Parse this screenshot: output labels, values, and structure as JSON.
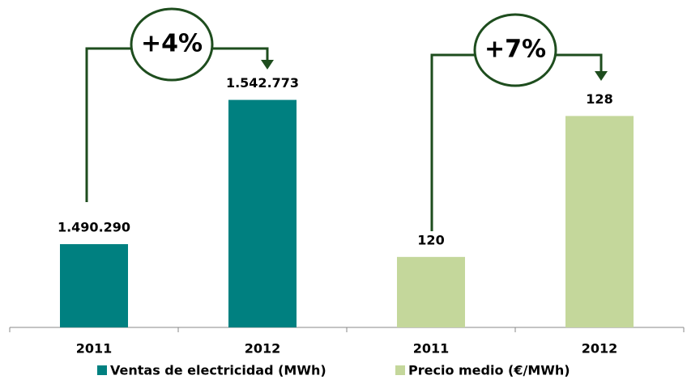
{
  "chart_data": [
    {
      "type": "bar",
      "categories": [
        "2011",
        "2012"
      ],
      "series": [
        {
          "name": "Ventas de electricidad (MWh)",
          "color": "#008080",
          "values": [
            1490290,
            1542773
          ],
          "value_labels": [
            "1.490.290",
            "1.542.773"
          ]
        }
      ],
      "ylim": [
        1460000,
        1560000
      ],
      "annotation": "+4%"
    },
    {
      "type": "bar",
      "categories": [
        "2011",
        "2012"
      ],
      "series": [
        {
          "name": "Precio medio (€/MWh)",
          "color": "#c4d79b",
          "values": [
            120,
            128
          ]
        }
      ],
      "ylim": [
        116,
        131.6
      ],
      "annotation": "+7%"
    }
  ]
}
